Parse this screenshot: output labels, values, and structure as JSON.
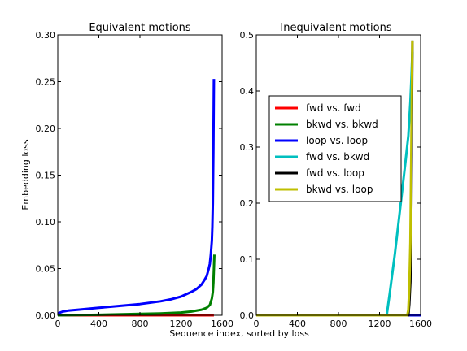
{
  "figure": {
    "shared_xlabel": "Sequence index, sorted by loss"
  },
  "chart_data": [
    {
      "type": "line",
      "title": "Equivalent motions",
      "xlabel": "",
      "ylabel": "Embedding loss",
      "xlim": [
        0,
        1600
      ],
      "ylim": [
        0,
        0.3
      ],
      "xticks": [
        "0",
        "400",
        "800",
        "1200",
        "1600"
      ],
      "yticks": [
        "0.00",
        "0.05",
        "0.10",
        "0.15",
        "0.20",
        "0.25",
        "0.30"
      ],
      "grid": false,
      "series": [
        {
          "name": "fwd vs. fwd",
          "color": "#ff0000",
          "x": [
            0,
            1400,
            1480,
            1500,
            1510,
            1520
          ],
          "y": [
            0.0,
            0.0,
            0.0,
            0.0,
            0.0,
            0.0
          ]
        },
        {
          "name": "bkwd vs. bkwd",
          "color": "#008000",
          "x": [
            0,
            400,
            800,
            1000,
            1200,
            1300,
            1400,
            1450,
            1480,
            1500,
            1510,
            1515,
            1520,
            1525
          ],
          "y": [
            0.0,
            0.0005,
            0.0015,
            0.002,
            0.003,
            0.004,
            0.006,
            0.008,
            0.011,
            0.018,
            0.025,
            0.035,
            0.05,
            0.065
          ]
        },
        {
          "name": "loop vs. loop",
          "color": "#0000ff",
          "x": [
            0,
            50,
            100,
            200,
            400,
            600,
            800,
            1000,
            1100,
            1200,
            1300,
            1350,
            1400,
            1430,
            1450,
            1470,
            1480,
            1490,
            1500,
            1505,
            1510,
            1515,
            1520
          ],
          "y": [
            0.002,
            0.004,
            0.005,
            0.006,
            0.008,
            0.01,
            0.012,
            0.015,
            0.017,
            0.02,
            0.025,
            0.028,
            0.033,
            0.038,
            0.042,
            0.05,
            0.055,
            0.065,
            0.08,
            0.095,
            0.12,
            0.18,
            0.253
          ]
        }
      ]
    },
    {
      "type": "line",
      "title": "Inequivalent motions",
      "xlabel": "",
      "ylabel": "",
      "xlim": [
        0,
        1600
      ],
      "ylim": [
        0,
        0.5
      ],
      "xticks": [
        "0",
        "400",
        "800",
        "1200",
        "1600"
      ],
      "yticks": [
        "0.0",
        "0.1",
        "0.2",
        "0.3",
        "0.4",
        "0.5"
      ],
      "grid": false,
      "legend": {
        "placement": "center",
        "entries": [
          {
            "label": "fwd vs. fwd",
            "color": "#ff0000"
          },
          {
            "label": "bkwd vs. bkwd",
            "color": "#008000"
          },
          {
            "label": "loop vs. loop",
            "color": "#0000ff"
          },
          {
            "label": "fwd vs. bkwd",
            "color": "#00bfbf"
          },
          {
            "label": "fwd vs. loop",
            "color": "#000000"
          },
          {
            "label": "bkwd vs. loop",
            "color": "#bfbf00"
          }
        ]
      },
      "series": [
        {
          "name": "fwd vs. fwd",
          "color": "#ff0000",
          "x": [
            0,
            1600
          ],
          "y": [
            0.0,
            0.0
          ]
        },
        {
          "name": "bkwd vs. bkwd",
          "color": "#008000",
          "x": [
            0,
            1600
          ],
          "y": [
            0.0,
            0.0
          ]
        },
        {
          "name": "loop vs. loop",
          "color": "#0000ff",
          "x": [
            0,
            1600
          ],
          "y": [
            0.0,
            0.0
          ]
        },
        {
          "name": "fwd vs. bkwd",
          "color": "#00bfbf",
          "x": [
            0,
            1270,
            1300,
            1350,
            1400,
            1450,
            1480,
            1500,
            1510,
            1520
          ],
          "y": [
            0.0,
            0.0,
            0.04,
            0.11,
            0.19,
            0.27,
            0.32,
            0.38,
            0.42,
            0.47
          ]
        },
        {
          "name": "fwd vs. loop",
          "color": "#000000",
          "x": [
            0,
            1480,
            1490,
            1500,
            1510,
            1520
          ],
          "y": [
            0.0,
            0.0,
            0.02,
            0.06,
            0.2,
            0.49
          ]
        },
        {
          "name": "bkwd vs. loop",
          "color": "#bfbf00",
          "x": [
            0,
            1470,
            1480,
            1490,
            1500,
            1510,
            1520
          ],
          "y": [
            0.0,
            0.0,
            0.01,
            0.05,
            0.13,
            0.3,
            0.49
          ]
        }
      ]
    }
  ]
}
